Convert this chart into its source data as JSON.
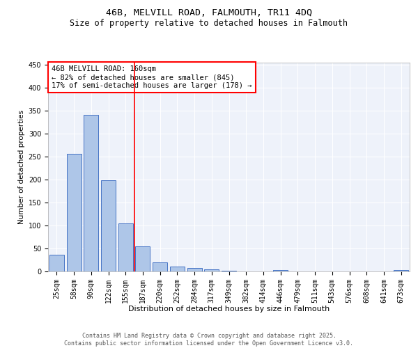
{
  "title1": "46B, MELVILL ROAD, FALMOUTH, TR11 4DQ",
  "title2": "Size of property relative to detached houses in Falmouth",
  "xlabel": "Distribution of detached houses by size in Falmouth",
  "ylabel": "Number of detached properties",
  "categories": [
    "25sqm",
    "58sqm",
    "90sqm",
    "122sqm",
    "155sqm",
    "187sqm",
    "220sqm",
    "252sqm",
    "284sqm",
    "317sqm",
    "349sqm",
    "382sqm",
    "414sqm",
    "446sqm",
    "479sqm",
    "511sqm",
    "543sqm",
    "576sqm",
    "608sqm",
    "641sqm",
    "673sqm"
  ],
  "values": [
    36,
    256,
    342,
    199,
    104,
    55,
    20,
    11,
    8,
    5,
    2,
    0,
    0,
    3,
    0,
    0,
    0,
    0,
    0,
    0,
    3
  ],
  "bar_color": "#aec6e8",
  "bar_edge_color": "#4472c4",
  "vline_x": 4.5,
  "vline_color": "red",
  "annotation_text": "46B MELVILL ROAD: 160sqm\n← 82% of detached houses are smaller (845)\n17% of semi-detached houses are larger (178) →",
  "annotation_box_color": "white",
  "annotation_box_edge_color": "red",
  "annotation_fontsize": 7.5,
  "ylim": [
    0,
    455
  ],
  "yticks": [
    0,
    50,
    100,
    150,
    200,
    250,
    300,
    350,
    400,
    450
  ],
  "bg_color": "#eef2fa",
  "grid_color": "white",
  "footer_text": "Contains HM Land Registry data © Crown copyright and database right 2025.\nContains public sector information licensed under the Open Government Licence v3.0.",
  "title1_fontsize": 9.5,
  "title2_fontsize": 8.5,
  "xlabel_fontsize": 8,
  "ylabel_fontsize": 7.5,
  "tick_fontsize": 7,
  "footer_fontsize": 6
}
